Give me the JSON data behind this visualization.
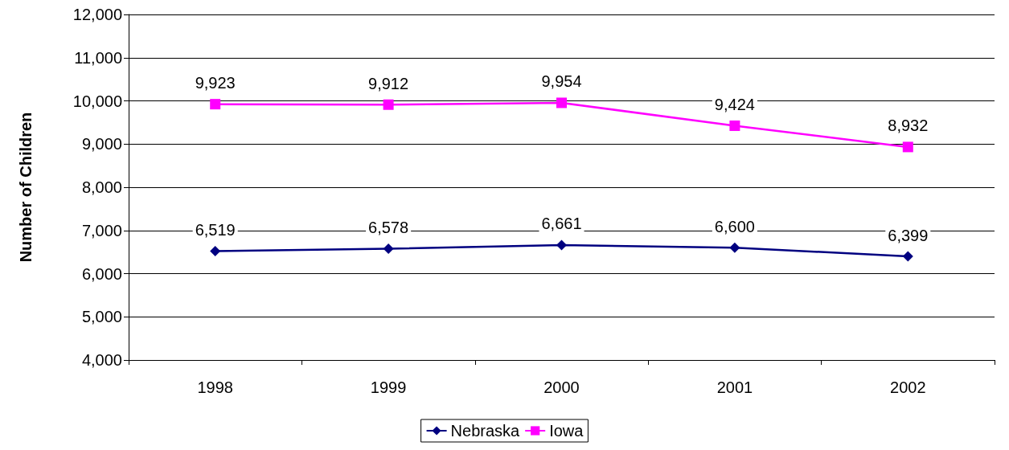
{
  "chart_data": {
    "type": "line",
    "ylabel": "Number of Children",
    "categories": [
      "1998",
      "1999",
      "2000",
      "2001",
      "2002"
    ],
    "series": [
      {
        "name": "Nebraska",
        "color": "#000080",
        "marker": "diamond",
        "values": [
          6519,
          6578,
          6661,
          6600,
          6399
        ],
        "value_labels": [
          "6,519",
          "6,578",
          "6,661",
          "6,600",
          "6,399"
        ]
      },
      {
        "name": "Iowa",
        "color": "#ff00ff",
        "marker": "square",
        "values": [
          9923,
          9912,
          9954,
          9424,
          8932
        ],
        "value_labels": [
          "9,923",
          "9,912",
          "9,954",
          "9,424",
          "8,932"
        ]
      }
    ],
    "ylim": [
      4000,
      12000
    ],
    "yticks": [
      {
        "value": 4000,
        "label": "4,000"
      },
      {
        "value": 5000,
        "label": "5,000"
      },
      {
        "value": 6000,
        "label": "6,000"
      },
      {
        "value": 7000,
        "label": "7,000"
      },
      {
        "value": 8000,
        "label": "8,000"
      },
      {
        "value": 9000,
        "label": "9,000"
      },
      {
        "value": 10000,
        "label": "10,000"
      },
      {
        "value": 11000,
        "label": "11,000"
      },
      {
        "value": 12000,
        "label": "12,000"
      }
    ],
    "grid": "y",
    "legend": "bottom",
    "line_style": "solid"
  }
}
